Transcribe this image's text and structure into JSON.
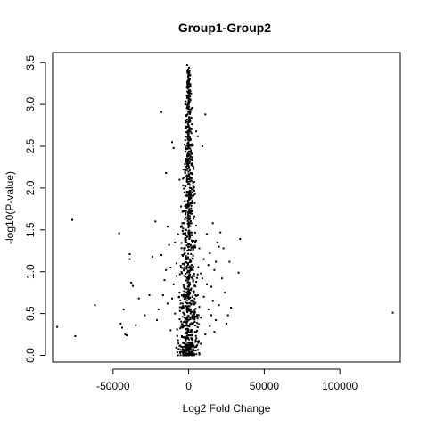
{
  "chart_data": {
    "type": "scatter",
    "title": "Group1-Group2",
    "xlabel": "Log2 Fold Change",
    "ylabel": "-log10(P-value)",
    "xlim": [
      -90000,
      140000
    ],
    "ylim": [
      -0.08,
      3.62
    ],
    "xticks": [
      -50000,
      0,
      50000,
      100000
    ],
    "xtick_labels": [
      "-50000",
      "0",
      "50000",
      "100000"
    ],
    "yticks": [
      0.0,
      0.5,
      1.0,
      1.5,
      2.0,
      2.5,
      3.0,
      3.5
    ],
    "ytick_labels": [
      "0.0",
      "0.5",
      "1.0",
      "1.5",
      "2.0",
      "2.5",
      "3.0",
      "3.5"
    ],
    "grid": false,
    "legend": "none",
    "point_color": "#000000",
    "points": [
      [
        -87000,
        0.34
      ],
      [
        -77000,
        1.62
      ],
      [
        -75000,
        0.23
      ],
      [
        -62000,
        0.6
      ],
      [
        -46000,
        1.46
      ],
      [
        -45000,
        0.38
      ],
      [
        -44000,
        0.33
      ],
      [
        -43000,
        0.55
      ],
      [
        -42000,
        0.25
      ],
      [
        -41000,
        0.24
      ],
      [
        -39000,
        1.21
      ],
      [
        -39000,
        1.15
      ],
      [
        -38000,
        0.87
      ],
      [
        -37000,
        0.83
      ],
      [
        -35000,
        0.36
      ],
      [
        -33000,
        0.68
      ],
      [
        -29000,
        0.48
      ],
      [
        -26000,
        0.72
      ],
      [
        -24000,
        1.18
      ],
      [
        -22000,
        1.6
      ],
      [
        -21000,
        0.42
      ],
      [
        -18000,
        2.91
      ],
      [
        -15000,
        2.18
      ],
      [
        -14000,
        1.54
      ],
      [
        -12000,
        0.3
      ],
      [
        -11000,
        2.55
      ],
      [
        -10000,
        2.48
      ],
      [
        -9000,
        1.35
      ],
      [
        -8000,
        0.95
      ],
      [
        -7000,
        0.18
      ],
      [
        -6000,
        2.1
      ],
      [
        -5000,
        1.78
      ],
      [
        -4000,
        0.62
      ],
      [
        -3000,
        1.25
      ],
      [
        -2000,
        2.02
      ],
      [
        -1000,
        3.47
      ],
      [
        -500,
        3.42
      ],
      [
        0,
        3.36
      ],
      [
        300,
        3.44
      ],
      [
        500,
        3.4
      ],
      [
        0,
        3.3
      ],
      [
        -200,
        3.25
      ],
      [
        200,
        3.15
      ],
      [
        0,
        3.05
      ],
      [
        -300,
        2.95
      ],
      [
        400,
        2.85
      ],
      [
        0,
        2.75
      ],
      [
        -600,
        2.68
      ],
      [
        600,
        2.58
      ],
      [
        0,
        2.5
      ],
      [
        -800,
        2.4
      ],
      [
        800,
        2.32
      ],
      [
        -1000,
        2.22
      ],
      [
        1000,
        2.12
      ],
      [
        0,
        2.05
      ],
      [
        -1200,
        1.95
      ],
      [
        1200,
        1.88
      ],
      [
        -1500,
        1.8
      ],
      [
        1500,
        1.72
      ],
      [
        -1800,
        1.65
      ],
      [
        1800,
        1.58
      ],
      [
        -2000,
        1.5
      ],
      [
        2000,
        1.44
      ],
      [
        -2200,
        1.36
      ],
      [
        2200,
        1.3
      ],
      [
        -2500,
        1.22
      ],
      [
        2500,
        1.16
      ],
      [
        -2800,
        1.08
      ],
      [
        2800,
        1.02
      ],
      [
        -3000,
        0.95
      ],
      [
        3000,
        0.9
      ],
      [
        -3200,
        0.82
      ],
      [
        3200,
        0.76
      ],
      [
        -3500,
        0.7
      ],
      [
        3500,
        0.64
      ],
      [
        -3800,
        0.58
      ],
      [
        3800,
        0.52
      ],
      [
        -4000,
        0.46
      ],
      [
        4000,
        0.4
      ],
      [
        -4200,
        0.34
      ],
      [
        4200,
        0.28
      ],
      [
        -4500,
        0.22
      ],
      [
        4500,
        0.16
      ],
      [
        -4800,
        0.1
      ],
      [
        4800,
        0.06
      ],
      [
        0,
        0.02
      ],
      [
        1500,
        2.45
      ],
      [
        2500,
        2.28
      ],
      [
        3000,
        2.02
      ],
      [
        4000,
        1.82
      ],
      [
        5000,
        2.68
      ],
      [
        6000,
        2.62
      ],
      [
        7000,
        1.28
      ],
      [
        8000,
        0.98
      ],
      [
        9000,
        2.5
      ],
      [
        10000,
        0.7
      ],
      [
        11000,
        2.88
      ],
      [
        12000,
        1.45
      ],
      [
        13000,
        0.55
      ],
      [
        14000,
        1.22
      ],
      [
        15000,
        0.82
      ],
      [
        16000,
        1.58
      ],
      [
        18000,
        1.12
      ],
      [
        20000,
        0.6
      ],
      [
        22000,
        0.92
      ],
      [
        23000,
        1.28
      ],
      [
        25000,
        0.38
      ],
      [
        26000,
        0.48
      ],
      [
        27000,
        1.12
      ],
      [
        28000,
        0.57
      ],
      [
        33000,
        0.99
      ],
      [
        34000,
        1.39
      ],
      [
        21000,
        1.47
      ],
      [
        17000,
        1.02
      ],
      [
        19000,
        1.35
      ],
      [
        24000,
        0.75
      ],
      [
        135000,
        0.51
      ],
      [
        -6000,
        0.75
      ],
      [
        -8000,
        1.1
      ],
      [
        -10000,
        0.85
      ],
      [
        -12000,
        1.05
      ],
      [
        -14000,
        0.62
      ],
      [
        -16000,
        0.9
      ],
      [
        -18000,
        1.2
      ],
      [
        -20000,
        0.55
      ],
      [
        -9000,
        0.5
      ],
      [
        -11000,
        0.68
      ],
      [
        -13000,
        1.32
      ],
      [
        -15000,
        1.02
      ],
      [
        -17000,
        0.72
      ],
      [
        -7000,
        1.45
      ],
      [
        -5000,
        1.05
      ],
      [
        6000,
        0.72
      ],
      [
        8000,
        0.45
      ],
      [
        10000,
        1.15
      ],
      [
        12000,
        0.85
      ],
      [
        14000,
        0.35
      ],
      [
        16000,
        0.65
      ],
      [
        18000,
        0.42
      ],
      [
        20000,
        1.3
      ],
      [
        5000,
        1.55
      ],
      [
        7000,
        0.58
      ],
      [
        9000,
        0.92
      ],
      [
        11000,
        0.25
      ],
      [
        13000,
        1.08
      ],
      [
        15000,
        0.48
      ],
      [
        17000,
        0.28
      ]
    ]
  }
}
